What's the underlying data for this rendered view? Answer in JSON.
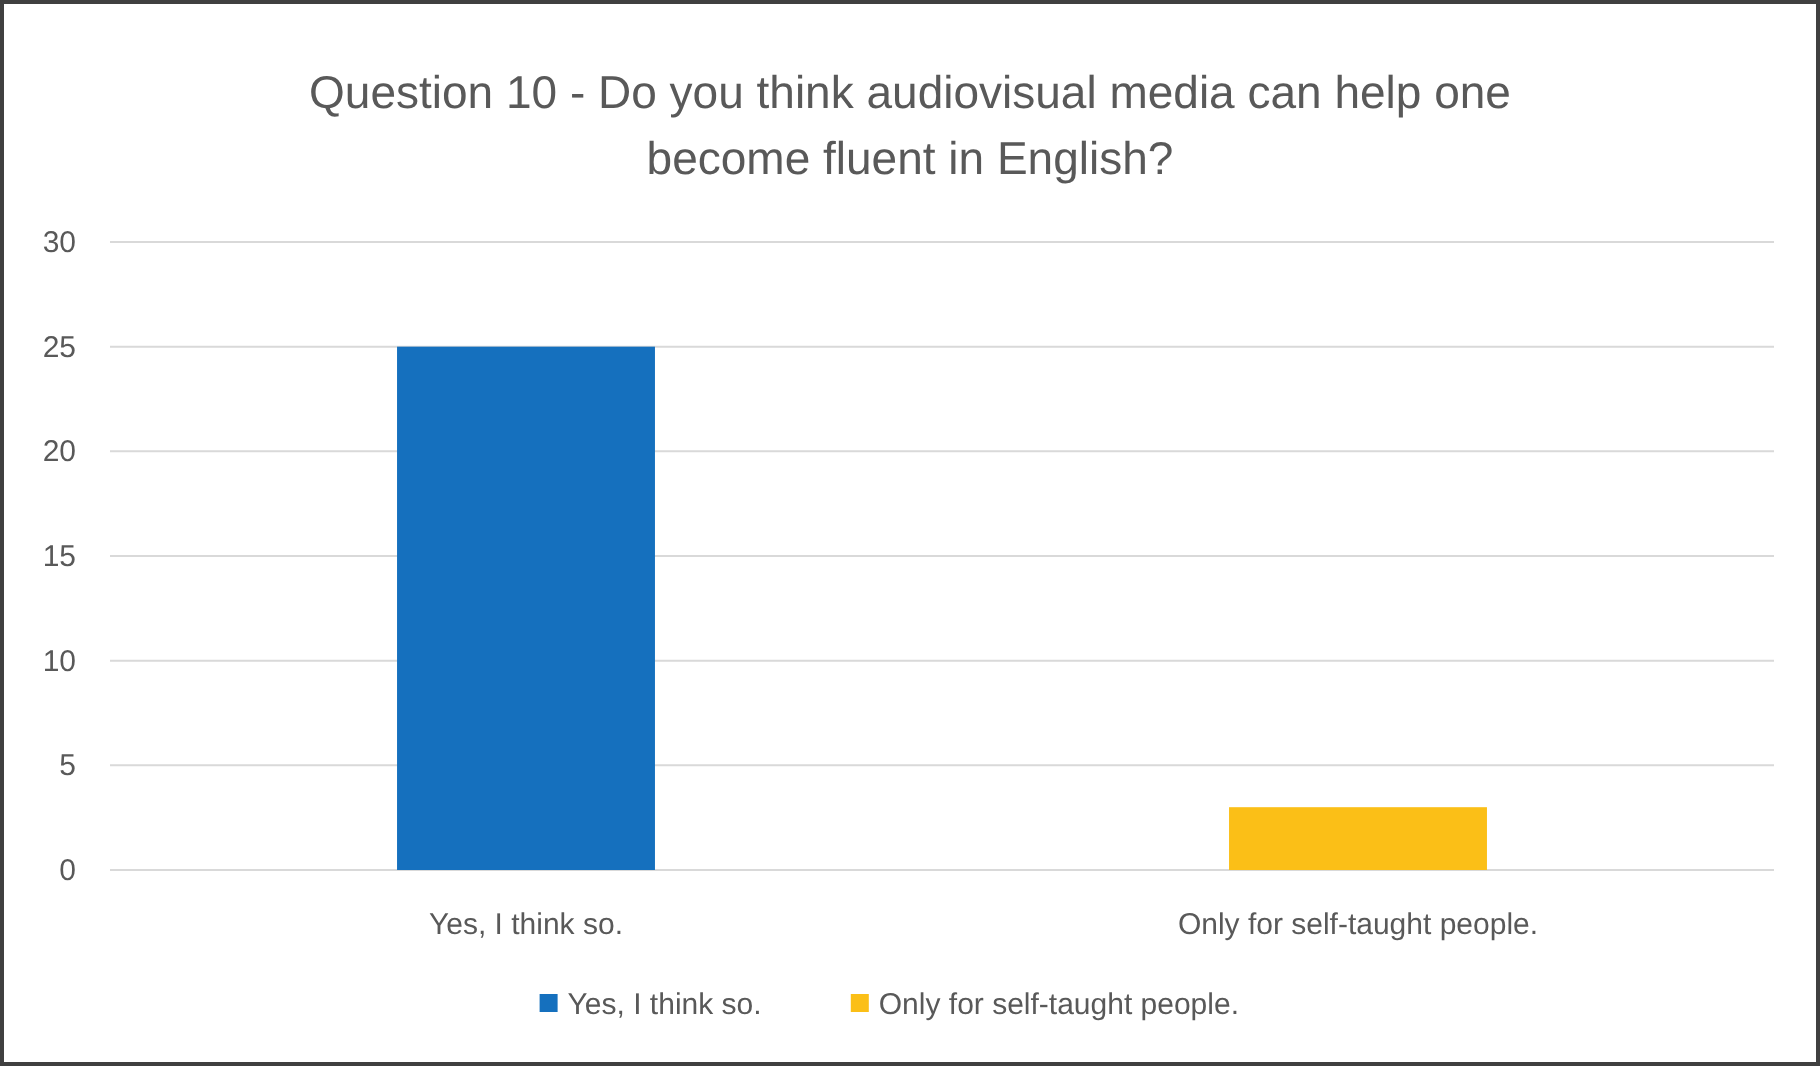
{
  "chart_data": {
    "type": "bar",
    "title": "Question 10 - Do you think audiovisual media can help one become fluent in English?",
    "categories": [
      "Yes, I think so.",
      "Only for self-taught people."
    ],
    "series": [
      {
        "name": "Yes, I think so.",
        "color": "#1570be",
        "values": [
          25,
          null
        ]
      },
      {
        "name": "Only for self-taught people.",
        "color": "#fbbf17",
        "values": [
          null,
          3
        ]
      }
    ],
    "ylim": [
      0,
      30
    ],
    "yticks": [
      0,
      5,
      10,
      15,
      20,
      25,
      30
    ],
    "grid": "y",
    "legend": "bottom"
  }
}
